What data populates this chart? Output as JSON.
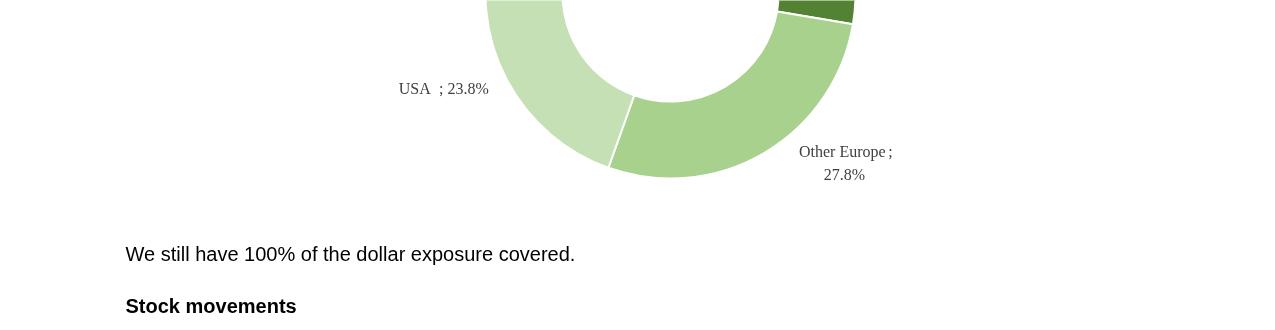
{
  "chart_data": {
    "type": "donut",
    "categories": [
      null,
      "Other Europe",
      "USA"
    ],
    "values": [
      48.4,
      27.8,
      23.8
    ],
    "colors": [
      "#548235",
      "#a9d18e",
      "#c5e0b4"
    ],
    "value_labels": [
      null,
      "; 27.8%",
      "; 23.8%"
    ],
    "annotations": [
      "We still have 100% of the dollar exposure covered.",
      "Stock movements"
    ]
  }
}
